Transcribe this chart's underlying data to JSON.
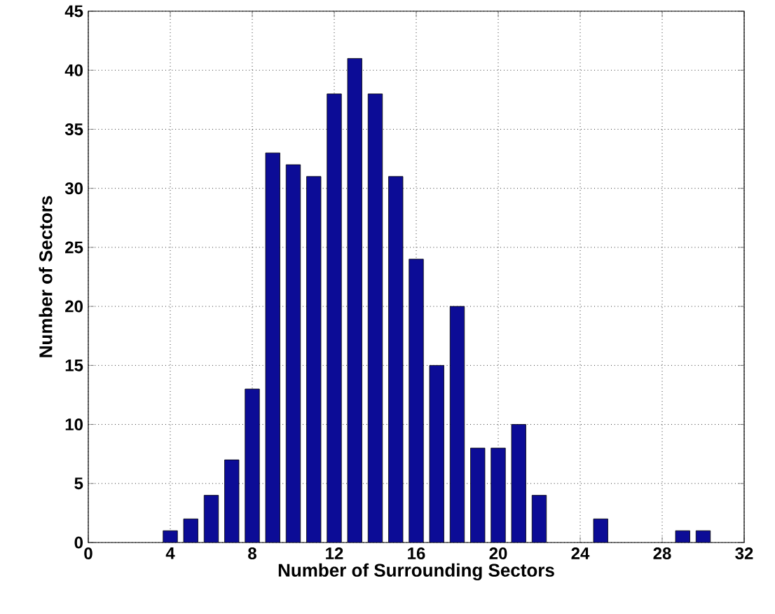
{
  "chart_data": {
    "type": "bar",
    "xlabel": "Number of Surrounding Sectors",
    "ylabel": "Number of Sectors",
    "x": [
      4,
      5,
      6,
      7,
      8,
      9,
      10,
      11,
      12,
      13,
      14,
      15,
      16,
      17,
      18,
      19,
      20,
      21,
      22,
      25,
      29,
      30
    ],
    "values": [
      1,
      2,
      4,
      7,
      13,
      33,
      32,
      31,
      38,
      41,
      38,
      31,
      24,
      15,
      20,
      8,
      8,
      10,
      4,
      2,
      1,
      1
    ],
    "color": "#0c0c96",
    "xlim": [
      0,
      32
    ],
    "xticks": [
      0,
      4,
      8,
      12,
      16,
      20,
      24,
      28,
      32
    ],
    "ylim": [
      0,
      45
    ],
    "yticks": [
      0,
      5,
      10,
      15,
      20,
      25,
      30,
      35,
      40,
      45
    ],
    "grid": true
  }
}
